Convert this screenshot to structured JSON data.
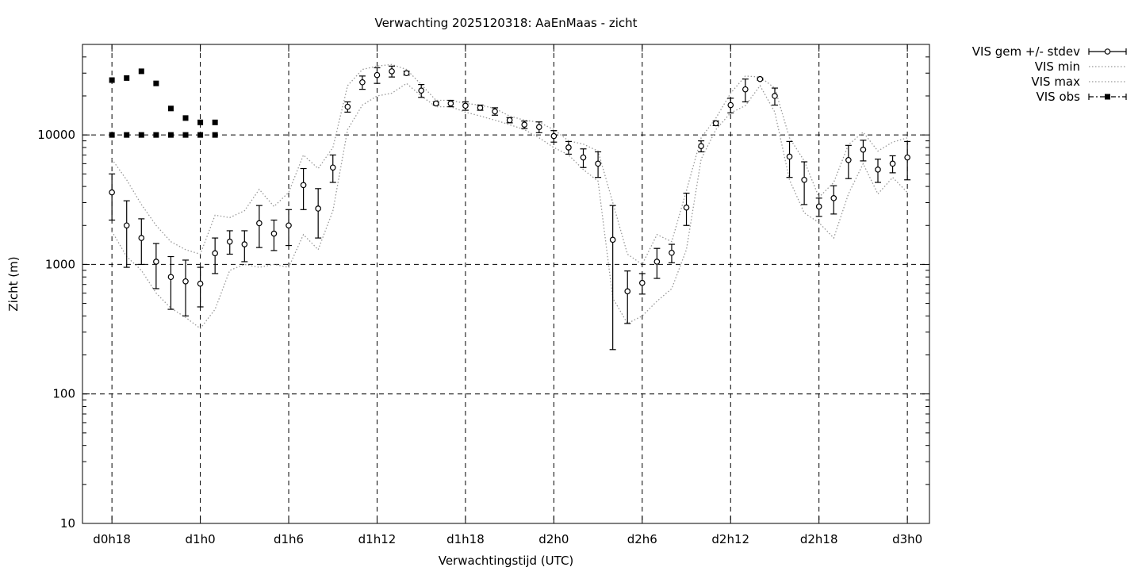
{
  "chart_data": {
    "type": "line",
    "title": "Verwachting 2025120318: AaEnMaas - zicht",
    "xlabel": "Verwachtingstijd (UTC)",
    "ylabel": "Zicht (m)",
    "y_scale": "log",
    "ylim": [
      10,
      50000
    ],
    "xlim": [
      -2,
      55.5
    ],
    "y_ticks": [
      10,
      100,
      1000,
      10000
    ],
    "y_tick_labels": [
      "10",
      "100",
      "1000",
      "10000"
    ],
    "x_ticks": [
      0,
      6,
      12,
      18,
      24,
      30,
      36,
      42,
      48,
      54
    ],
    "x_tick_labels": [
      "d0h18",
      "d1h0",
      "d1h6",
      "d1h12",
      "d1h18",
      "d2h0",
      "d2h6",
      "d2h12",
      "d2h18",
      "d3h0"
    ],
    "grid": true,
    "legend_position": "outside-top-right",
    "series": [
      {
        "name": "VIS gem +/- stdev",
        "style": "open circles with error bars",
        "points": [
          [
            0,
            3600,
            2200,
            5000
          ],
          [
            1,
            2000,
            950,
            3100
          ],
          [
            2,
            1600,
            1000,
            2250
          ],
          [
            3,
            1050,
            650,
            1450
          ],
          [
            4,
            800,
            450,
            1150
          ],
          [
            5,
            740,
            400,
            1080
          ],
          [
            6,
            710,
            470,
            950
          ],
          [
            7,
            1220,
            850,
            1600
          ],
          [
            8,
            1500,
            1200,
            1820
          ],
          [
            9,
            1430,
            1050,
            1820
          ],
          [
            10,
            2080,
            1350,
            2850
          ],
          [
            11,
            1730,
            1280,
            2200
          ],
          [
            12,
            2000,
            1400,
            2650
          ],
          [
            13,
            4100,
            2650,
            5500
          ],
          [
            14,
            2700,
            1600,
            3850
          ],
          [
            15,
            5600,
            4300,
            7000
          ],
          [
            16,
            16500,
            15000,
            18000
          ],
          [
            17,
            25500,
            22500,
            28500
          ],
          [
            18,
            29000,
            25000,
            33000
          ],
          [
            19,
            31000,
            28000,
            34000
          ],
          [
            20,
            30000,
            29000,
            31000
          ],
          [
            21,
            22000,
            19500,
            24500
          ],
          [
            22,
            17500,
            17000,
            18000
          ],
          [
            23,
            17500,
            16500,
            18500
          ],
          [
            24,
            16800,
            15500,
            18000
          ],
          [
            25,
            16200,
            15500,
            17000
          ],
          [
            26,
            15200,
            14200,
            16200
          ],
          [
            27,
            13000,
            12400,
            13600
          ],
          [
            28,
            12000,
            11200,
            12800
          ],
          [
            29,
            11500,
            10400,
            12600
          ],
          [
            30,
            9800,
            8800,
            10800
          ],
          [
            31,
            8000,
            7100,
            8900
          ],
          [
            32,
            6700,
            5600,
            7800
          ],
          [
            33,
            6000,
            4700,
            7400
          ],
          [
            34,
            1550,
            220,
            2850
          ],
          [
            35,
            620,
            350,
            890
          ],
          [
            36,
            720,
            590,
            850
          ],
          [
            37,
            1050,
            780,
            1330
          ],
          [
            38,
            1230,
            1030,
            1430
          ],
          [
            39,
            2750,
            2000,
            3550
          ],
          [
            40,
            8200,
            7400,
            9000
          ],
          [
            41,
            12300,
            11800,
            12800
          ],
          [
            42,
            17000,
            14800,
            19200
          ],
          [
            43,
            22500,
            18000,
            27000
          ],
          [
            44,
            27000,
            26500,
            27500
          ],
          [
            45,
            20000,
            17000,
            23000
          ],
          [
            46,
            6800,
            4700,
            8900
          ],
          [
            47,
            4500,
            2900,
            6200
          ],
          [
            48,
            2800,
            2350,
            3250
          ],
          [
            49,
            3250,
            2450,
            4050
          ],
          [
            50,
            6400,
            4600,
            8300
          ],
          [
            51,
            7700,
            6300,
            9100
          ],
          [
            52,
            5400,
            4300,
            6500
          ],
          [
            53,
            6000,
            5100,
            6900
          ],
          [
            54,
            6700,
            4500,
            8900
          ]
        ]
      },
      {
        "name": "VIS min",
        "style": "dotted line",
        "x": [
          0,
          1,
          2,
          3,
          4,
          5,
          6,
          7,
          8,
          9,
          10,
          11,
          12,
          13,
          14,
          15,
          16,
          17,
          18,
          19,
          20,
          21,
          22,
          23,
          24,
          25,
          26,
          27,
          28,
          29,
          30,
          31,
          32,
          33,
          34,
          35,
          36,
          37,
          38,
          39,
          40,
          41,
          42,
          43,
          44,
          45,
          46,
          47,
          48,
          49,
          50,
          51,
          52,
          53,
          54
        ],
        "values": [
          1800,
          1150,
          900,
          600,
          460,
          390,
          320,
          450,
          900,
          1000,
          950,
          1000,
          950,
          1700,
          1300,
          2600,
          11000,
          17000,
          20000,
          21000,
          25000,
          20000,
          16500,
          16500,
          15000,
          14000,
          13000,
          12000,
          11000,
          9500,
          8000,
          7000,
          5400,
          4400,
          550,
          350,
          400,
          520,
          650,
          1300,
          6500,
          11000,
          14800,
          16800,
          24000,
          15000,
          4500,
          2500,
          2100,
          1600,
          3500,
          6000,
          3500,
          4700,
          3600
        ]
      },
      {
        "name": "VIS max",
        "style": "dotted line",
        "x": [
          0,
          1,
          2,
          3,
          4,
          5,
          6,
          7,
          8,
          9,
          10,
          11,
          12,
          13,
          14,
          15,
          16,
          17,
          18,
          19,
          20,
          21,
          22,
          23,
          24,
          25,
          26,
          27,
          28,
          29,
          30,
          31,
          32,
          33,
          34,
          35,
          36,
          37,
          38,
          39,
          40,
          41,
          42,
          43,
          44,
          45,
          46,
          47,
          48,
          49,
          50,
          51,
          52,
          53,
          54
        ],
        "values": [
          6500,
          4500,
          2900,
          2000,
          1500,
          1300,
          1200,
          2400,
          2300,
          2600,
          3800,
          2800,
          3600,
          7000,
          5500,
          8000,
          24000,
          32000,
          34000,
          35000,
          32000,
          24500,
          18500,
          18500,
          17500,
          17000,
          16000,
          14000,
          13000,
          12500,
          11000,
          9000,
          8500,
          7500,
          3000,
          1200,
          1000,
          1700,
          1500,
          3700,
          9500,
          13500,
          21000,
          28500,
          28000,
          23000,
          9500,
          6300,
          3300,
          4300,
          8400,
          10500,
          7500,
          8800,
          9500
        ]
      },
      {
        "name": "VIS obs",
        "style": "filled squares",
        "points": [
          [
            0,
            26500
          ],
          [
            1,
            27500
          ],
          [
            2,
            31000
          ],
          [
            3,
            25000
          ],
          [
            4,
            16000
          ],
          [
            5,
            13500
          ],
          [
            6,
            12500
          ],
          [
            7,
            12500
          ],
          [
            0,
            10000
          ],
          [
            1,
            10000
          ],
          [
            2,
            10000
          ],
          [
            3,
            10000
          ],
          [
            4,
            10000
          ],
          [
            5,
            10000
          ],
          [
            6,
            10000
          ],
          [
            7,
            10000
          ]
        ]
      }
    ]
  }
}
